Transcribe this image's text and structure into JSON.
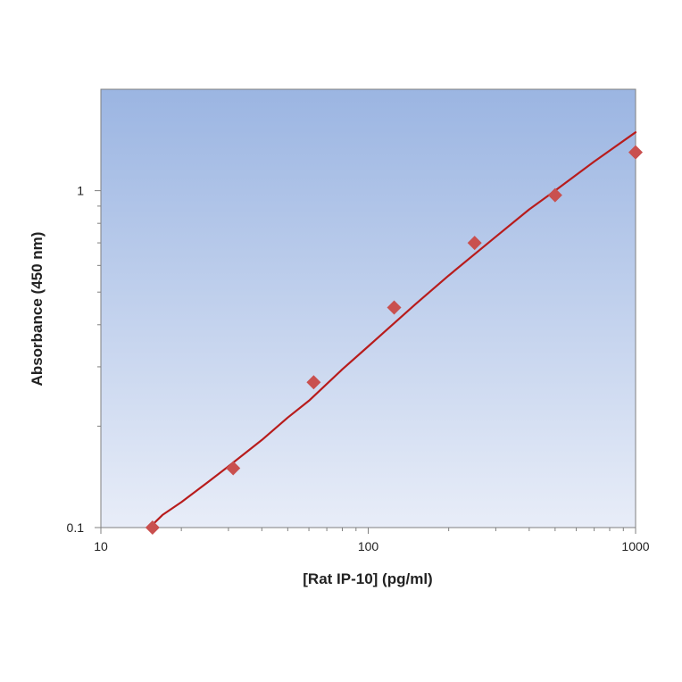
{
  "chart_data": {
    "type": "scatter",
    "title": "",
    "xlabel": "[Rat IP-10] (pg/ml)",
    "ylabel": "Absorbance (450 nm)",
    "xscale": "log",
    "yscale": "log",
    "xlim": [
      10,
      1000
    ],
    "ylim": [
      0.1,
      2.0
    ],
    "x_ticks": [
      {
        "value": 10,
        "label": "10"
      },
      {
        "value": 100,
        "label": "100"
      },
      {
        "value": 1000,
        "label": "1000"
      }
    ],
    "y_ticks": [
      {
        "value": 0.1,
        "label": "0.1"
      },
      {
        "value": 1,
        "label": "1"
      }
    ],
    "grid": false,
    "legend": "none",
    "series": [
      {
        "kind": "points",
        "marker": "diamond",
        "color": "#c9504f",
        "x": [
          15.6,
          31.25,
          62.5,
          125,
          250,
          500,
          1000
        ],
        "y": [
          0.1,
          0.15,
          0.27,
          0.45,
          0.7,
          0.97,
          1.3
        ]
      },
      {
        "kind": "fit-line",
        "color": "#b81c1c",
        "x": [
          15.6,
          17,
          20,
          25,
          30,
          40,
          50,
          60,
          80,
          100,
          150,
          200,
          300,
          400,
          500,
          700,
          1000
        ],
        "y": [
          0.102,
          0.109,
          0.119,
          0.136,
          0.152,
          0.182,
          0.212,
          0.238,
          0.295,
          0.345,
          0.46,
          0.56,
          0.73,
          0.88,
          1.0,
          1.22,
          1.49
        ]
      }
    ],
    "background_gradient": {
      "top": "#9bb5e2",
      "bottom": "#e8edf8"
    }
  }
}
